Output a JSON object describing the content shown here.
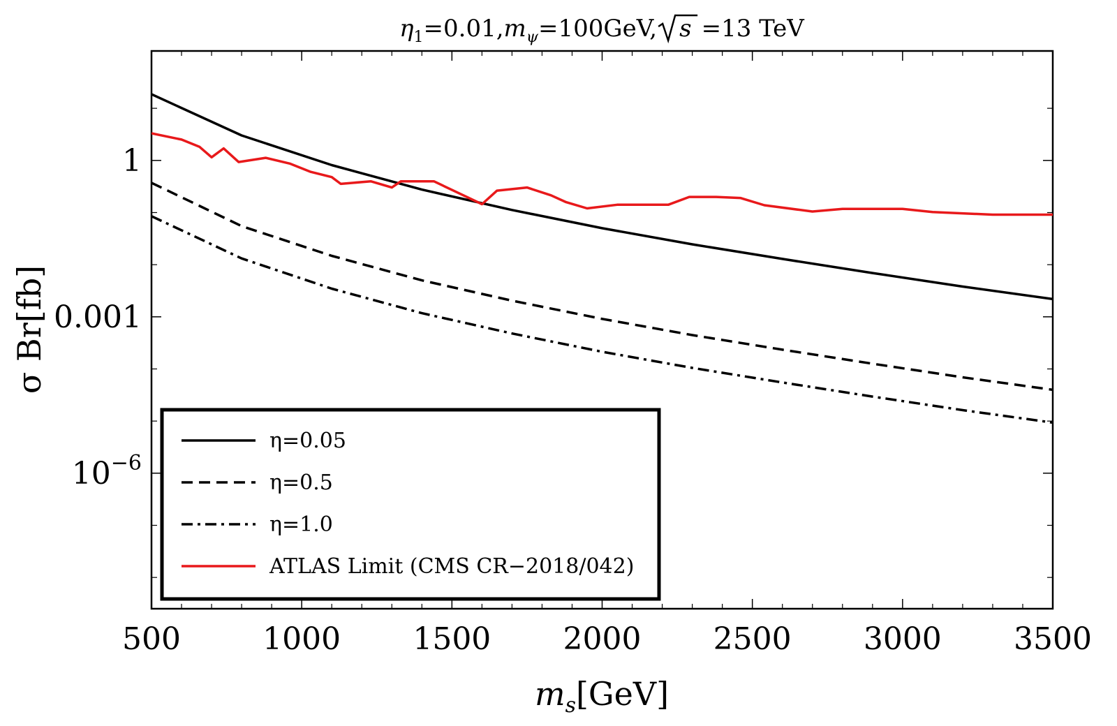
{
  "chart_data": {
    "type": "line",
    "title": {
      "eta_symbol": "η",
      "eta_sub": "1",
      "eta_value": "=0.01,",
      "m_symbol": "m",
      "m_sub": "ψ",
      "m_value": "=100GeV,",
      "sqrt_arg": "s",
      "energy": "=13 TeV"
    },
    "xlabel": {
      "symbol": "m",
      "sub": "s",
      "unit": "[GeV]"
    },
    "ylabel": "σ Br[fb]",
    "x_range": [
      500,
      3500
    ],
    "y_log10_range": [
      -8.6,
      2.1
    ],
    "x_ticks": [
      {
        "value": 500,
        "label": "500"
      },
      {
        "value": 1000,
        "label": "1000"
      },
      {
        "value": 1500,
        "label": "1500"
      },
      {
        "value": 2000,
        "label": "2000"
      },
      {
        "value": 2500,
        "label": "2500"
      },
      {
        "value": 3000,
        "label": "3000"
      },
      {
        "value": 3500,
        "label": "3500"
      }
    ],
    "y_ticks": [
      {
        "log10": 0,
        "label": "1",
        "exp": ""
      },
      {
        "log10": -3,
        "label": "0.001",
        "exp": ""
      },
      {
        "log10": -6,
        "label": "10",
        "exp": "−6"
      }
    ],
    "y_minor_ticks_log10": [
      1,
      -1,
      -2,
      -4,
      -5,
      -7,
      -8
    ],
    "legend": {
      "position": "bottom-left",
      "entries": [
        {
          "label": "η=0.05",
          "style": "solid",
          "color": "#000000"
        },
        {
          "label": "η=0.5",
          "style": "dashed",
          "color": "#000000"
        },
        {
          "label": "η=1.0",
          "style": "dashdot",
          "color": "#000000"
        },
        {
          "label": "ATLAS Limit (CMS CR−2018/042)",
          "style": "solid",
          "color": "#e8191b"
        }
      ]
    },
    "series": [
      {
        "name": "η=0.05",
        "style": "solid",
        "color": "#000000",
        "x": [
          500,
          800,
          1100,
          1400,
          1700,
          2000,
          2300,
          2600,
          2900,
          3200,
          3500
        ],
        "y_log10": [
          1.27,
          0.48,
          -0.09,
          -0.56,
          -0.95,
          -1.3,
          -1.61,
          -1.89,
          -2.16,
          -2.42,
          -2.66
        ]
      },
      {
        "name": "η=0.5",
        "style": "dashed",
        "color": "#000000",
        "x": [
          500,
          800,
          1100,
          1400,
          1700,
          2000,
          2300,
          2600,
          2900,
          3200,
          3500
        ],
        "y_log10": [
          -0.43,
          -1.26,
          -1.83,
          -2.3,
          -2.69,
          -3.04,
          -3.35,
          -3.63,
          -3.9,
          -4.16,
          -4.4
        ]
      },
      {
        "name": "η=1.0",
        "style": "dashdot",
        "color": "#000000",
        "x": [
          500,
          800,
          1100,
          1400,
          1700,
          2000,
          2300,
          2600,
          2900,
          3200,
          3500
        ],
        "y_log10": [
          -1.07,
          -1.88,
          -2.46,
          -2.93,
          -3.32,
          -3.67,
          -3.98,
          -4.26,
          -4.53,
          -4.79,
          -5.03
        ]
      },
      {
        "name": "ATLAS Limit (CMS CR−2018/042)",
        "style": "solid",
        "color": "#e8191b",
        "x": [
          500,
          600,
          660,
          700,
          740,
          790,
          880,
          960,
          1030,
          1100,
          1130,
          1230,
          1300,
          1330,
          1440,
          1520,
          1600,
          1650,
          1750,
          1830,
          1880,
          1950,
          2050,
          2220,
          2290,
          2380,
          2460,
          2540,
          2700,
          2800,
          3000,
          3100,
          3300,
          3500
        ],
        "y_log10": [
          0.52,
          0.4,
          0.26,
          0.06,
          0.23,
          -0.03,
          0.05,
          -0.06,
          -0.22,
          -0.32,
          -0.45,
          -0.4,
          -0.52,
          -0.4,
          -0.4,
          -0.62,
          -0.84,
          -0.58,
          -0.52,
          -0.67,
          -0.8,
          -0.92,
          -0.85,
          -0.85,
          -0.7,
          -0.7,
          -0.72,
          -0.86,
          -0.98,
          -0.93,
          -0.93,
          -0.99,
          -1.04,
          -1.04
        ]
      }
    ]
  }
}
